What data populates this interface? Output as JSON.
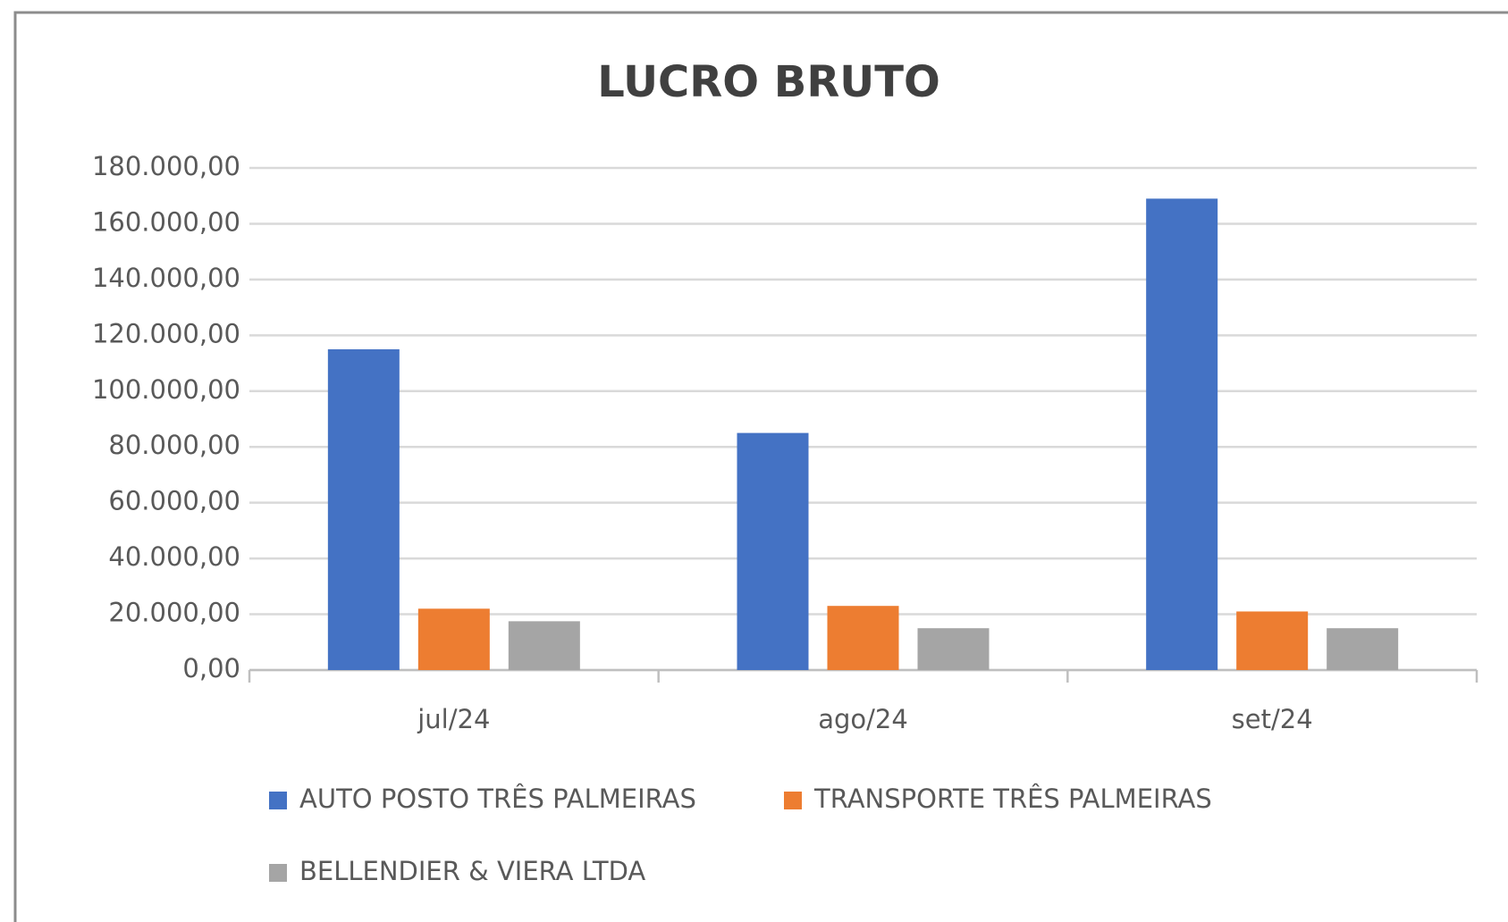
{
  "chart_data": {
    "type": "bar",
    "title": "LUCRO BRUTO",
    "categories": [
      "jul/24",
      "ago/24",
      "set/24"
    ],
    "series": [
      {
        "name": "AUTO POSTO TRÊS PALMEIRAS",
        "color": "#4472c4",
        "values": [
          115000,
          85000,
          169000
        ]
      },
      {
        "name": "TRANSPORTE TRÊS PALMEIRAS",
        "color": "#ed7d31",
        "values": [
          22000,
          23000,
          21000
        ]
      },
      {
        "name": "BELLENDIER & VIERA LTDA",
        "color": "#a5a5a5",
        "values": [
          17500,
          15000,
          15000
        ]
      }
    ],
    "ylim": [
      0,
      180000
    ],
    "yticks": [
      {
        "value": 0,
        "label": "0,00"
      },
      {
        "value": 20000,
        "label": "20.000,00"
      },
      {
        "value": 40000,
        "label": "40.000,00"
      },
      {
        "value": 60000,
        "label": "60.000,00"
      },
      {
        "value": 80000,
        "label": "80.000,00"
      },
      {
        "value": 100000,
        "label": "100.000,00"
      },
      {
        "value": 120000,
        "label": "120.000,00"
      },
      {
        "value": 140000,
        "label": "140.000,00"
      },
      {
        "value": 160000,
        "label": "160.000,00"
      },
      {
        "value": 180000,
        "label": "180.000,00"
      }
    ],
    "grid": true,
    "legend": "bottom"
  }
}
